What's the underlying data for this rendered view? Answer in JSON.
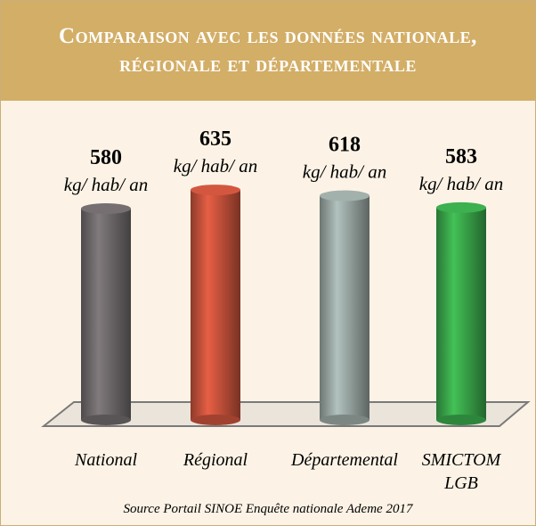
{
  "chart_data": {
    "type": "bar",
    "title": "Comparaison avec les données nationale, régionale et départementale",
    "categories": [
      "National",
      "Régional",
      "Départemental",
      "SMICTOM LGB"
    ],
    "values": [
      580,
      635,
      618,
      583
    ],
    "colors": [
      "#6f6a6c",
      "#c9533c",
      "#9ba9a5",
      "#3aa84b"
    ],
    "value_unit": "kg/ hab/ an",
    "source": "Source Portail SINOE Enquête nationale Ademe 2017"
  }
}
